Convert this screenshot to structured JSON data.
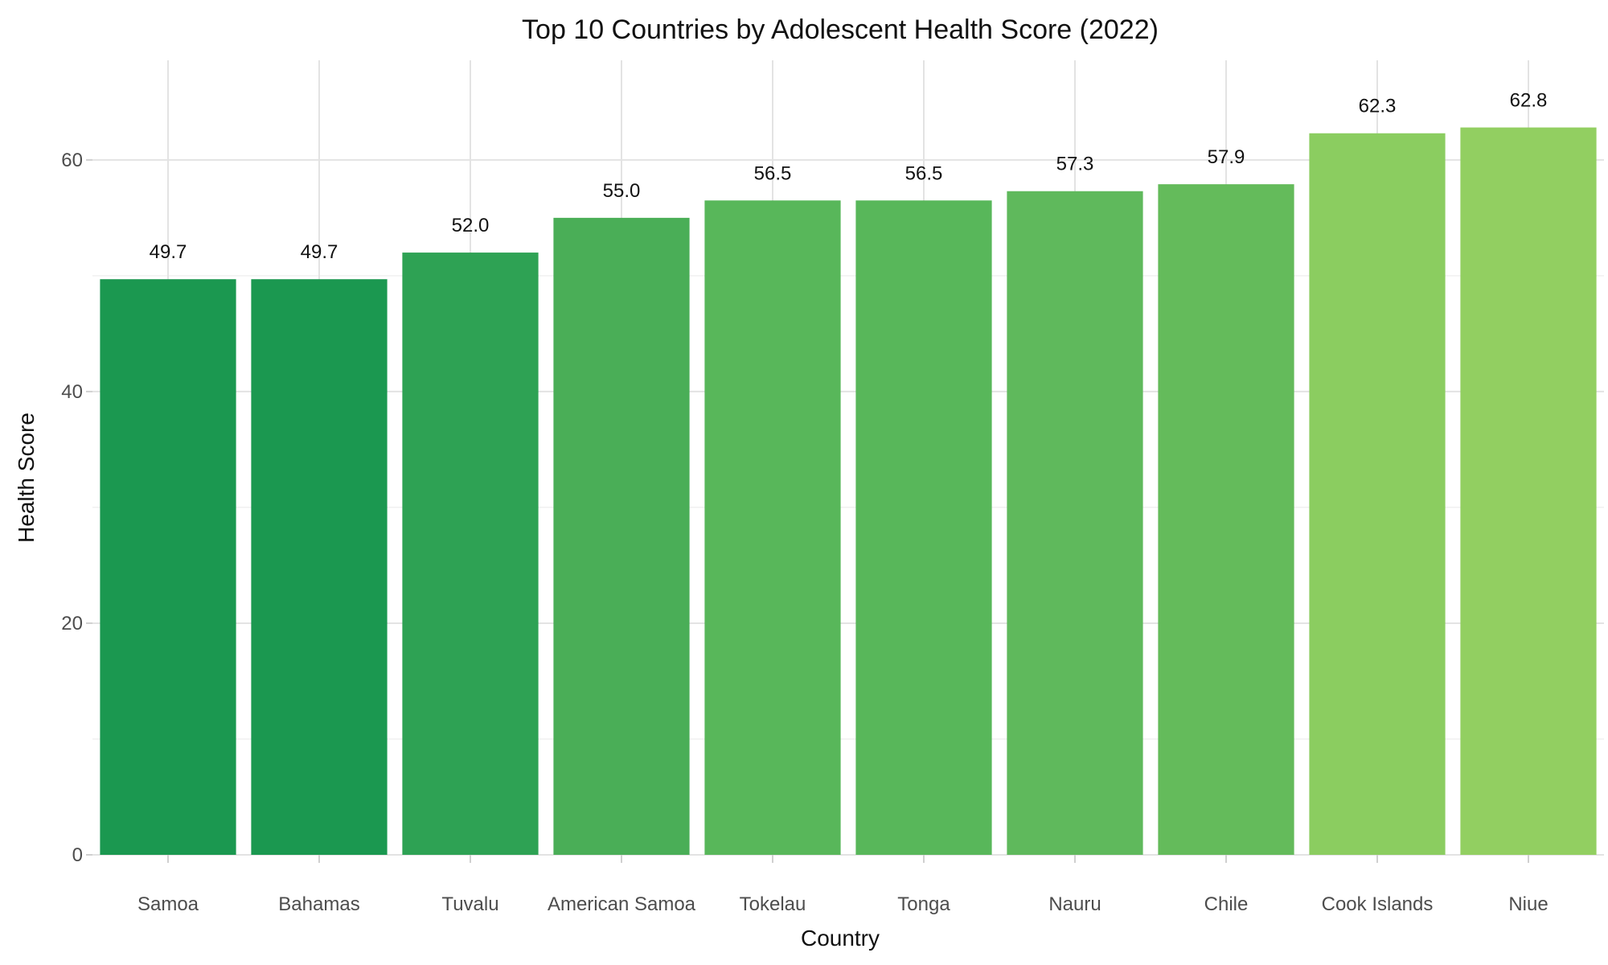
{
  "chart_data": {
    "type": "bar",
    "title": "Top 10 Countries by Adolescent Health Score (2022)",
    "xlabel": "Country",
    "ylabel": "Health Score",
    "categories": [
      "Samoa",
      "Bahamas",
      "Tuvalu",
      "American Samoa",
      "Tokelau",
      "Tonga",
      "Nauru",
      "Chile",
      "Cook Islands",
      "Niue"
    ],
    "values": [
      49.7,
      49.7,
      52.0,
      55.0,
      56.5,
      56.5,
      57.3,
      57.9,
      62.3,
      62.8
    ],
    "data_labels": [
      "49.7",
      "49.7",
      "52.0",
      "55.0",
      "56.5",
      "56.5",
      "57.3",
      "57.9",
      "62.3",
      "62.8"
    ],
    "bar_colors": [
      "#1b9850",
      "#1b9850",
      "#2ea254",
      "#4aae57",
      "#58b75a",
      "#58b75a",
      "#5fb95c",
      "#64bb5b",
      "#8bcd60",
      "#92cf61"
    ],
    "ylim": [
      0,
      68.6
    ],
    "yticks": [
      0,
      20,
      40,
      60
    ],
    "ytick_labels": [
      "0",
      "20",
      "40",
      "60"
    ],
    "grid": true,
    "legend": "none"
  }
}
